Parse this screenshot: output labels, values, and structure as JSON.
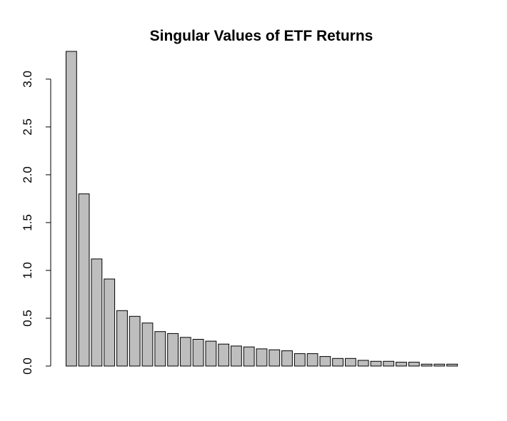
{
  "chart_data": {
    "type": "bar",
    "title": "Singular Values of ETF Returns",
    "xlabel": "",
    "ylabel": "",
    "ylim": [
      0,
      3.3
    ],
    "yticks": [
      0.0,
      0.5,
      1.0,
      1.5,
      2.0,
      2.5,
      3.0
    ],
    "ytick_labels": [
      "0.0",
      "0.5",
      "1.0",
      "1.5",
      "2.0",
      "2.5",
      "3.0"
    ],
    "values": [
      3.29,
      1.8,
      1.12,
      0.91,
      0.58,
      0.52,
      0.45,
      0.36,
      0.34,
      0.3,
      0.28,
      0.26,
      0.23,
      0.21,
      0.2,
      0.18,
      0.17,
      0.16,
      0.13,
      0.13,
      0.1,
      0.08,
      0.08,
      0.06,
      0.05,
      0.05,
      0.04,
      0.04,
      0.02,
      0.02,
      0.02
    ],
    "bar_color": "#bebebe",
    "grid": false,
    "legend": "none"
  }
}
